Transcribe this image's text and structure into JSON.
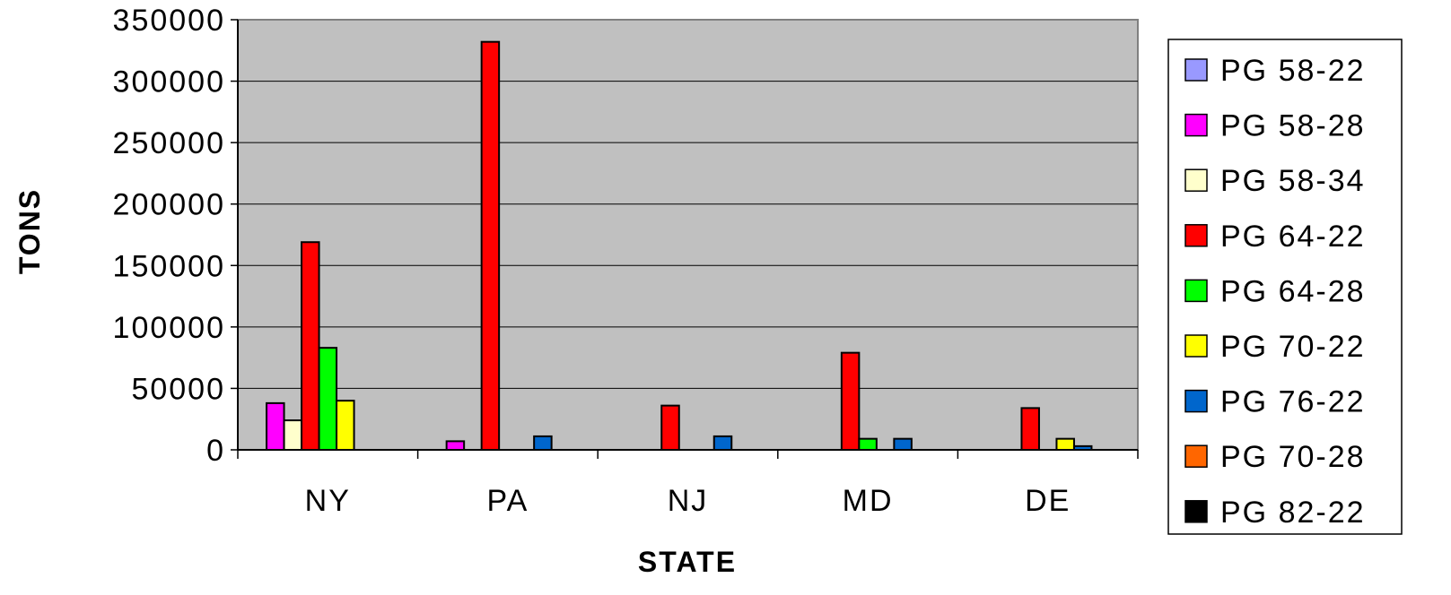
{
  "chart_data": {
    "type": "bar",
    "xlabel": "STATE",
    "ylabel": "TONS",
    "ylim": [
      0,
      350000
    ],
    "yticks": [
      "0",
      "50000",
      "100000",
      "150000",
      "200000",
      "250000",
      "300000",
      "350000"
    ],
    "grid": true,
    "legend_position": "right",
    "plot_background": "#c0c0c0",
    "categories": [
      "NY",
      "PA",
      "NJ",
      "MD",
      "DE"
    ],
    "series": [
      {
        "name": "PG 58-22",
        "color": "#9999ff",
        "values": [
          0,
          0,
          0,
          0,
          0
        ]
      },
      {
        "name": "PG 58-28",
        "color": "#ff00ff",
        "values": [
          38000,
          7000,
          0,
          0,
          0
        ]
      },
      {
        "name": "PG 58-34",
        "color": "#ffffcc",
        "values": [
          24000,
          0,
          0,
          0,
          0
        ]
      },
      {
        "name": "PG 64-22",
        "color": "#ff0000",
        "values": [
          169000,
          332000,
          36000,
          79000,
          34000
        ]
      },
      {
        "name": "PG 64-28",
        "color": "#00ff00",
        "values": [
          83000,
          0,
          0,
          9000,
          0
        ]
      },
      {
        "name": "PG 70-22",
        "color": "#ffff00",
        "values": [
          40000,
          0,
          0,
          0,
          9000
        ]
      },
      {
        "name": "PG 76-22",
        "color": "#0066cc",
        "values": [
          0,
          11000,
          11000,
          9000,
          3000
        ]
      },
      {
        "name": "PG 70-28",
        "color": "#ff6600",
        "values": [
          0,
          0,
          0,
          0,
          0
        ]
      },
      {
        "name": "PG 82-22",
        "color": "#000000",
        "values": [
          0,
          0,
          0,
          0,
          0
        ]
      }
    ]
  }
}
